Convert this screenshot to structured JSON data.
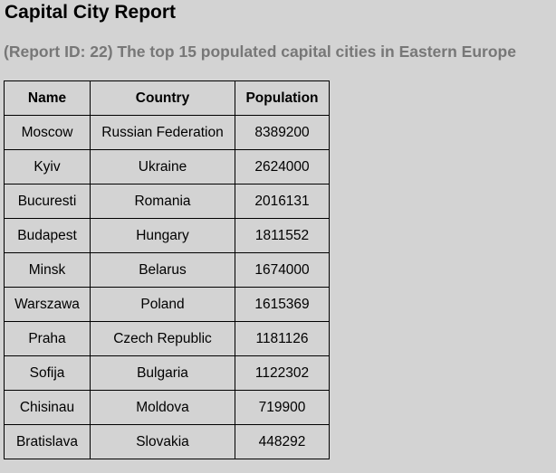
{
  "header": {
    "title": "Capital City Report",
    "subtitle": "(Report ID: 22) The top 15 populated capital cities in Eastern Europe"
  },
  "table": {
    "columns": [
      "Name",
      "Country",
      "Population"
    ],
    "rows": [
      {
        "name": "Moscow",
        "country": "Russian Federation",
        "population": "8389200"
      },
      {
        "name": "Kyiv",
        "country": "Ukraine",
        "population": "2624000"
      },
      {
        "name": "Bucuresti",
        "country": "Romania",
        "population": "2016131"
      },
      {
        "name": "Budapest",
        "country": "Hungary",
        "population": "1811552"
      },
      {
        "name": "Minsk",
        "country": "Belarus",
        "population": "1674000"
      },
      {
        "name": "Warszawa",
        "country": "Poland",
        "population": "1615369"
      },
      {
        "name": "Praha",
        "country": "Czech Republic",
        "population": "1181126"
      },
      {
        "name": "Sofija",
        "country": "Bulgaria",
        "population": "1122302"
      },
      {
        "name": "Chisinau",
        "country": "Moldova",
        "population": "719900"
      },
      {
        "name": "Bratislava",
        "country": "Slovakia",
        "population": "448292"
      }
    ]
  }
}
